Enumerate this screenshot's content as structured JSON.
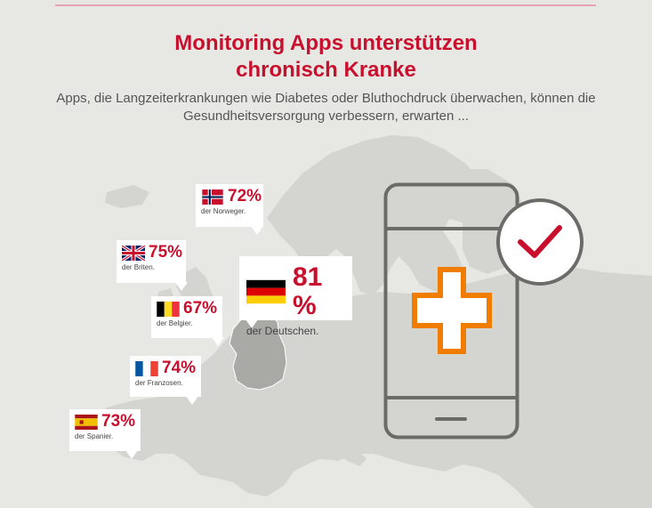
{
  "header": {
    "title_line1": "Monitoring Apps unterstützen",
    "title_line2": "chronisch Kranke",
    "subtitle": "Apps, die Langzeiterkrankungen wie Diabetes oder Bluthochdruck überwachen, können die Gesundheitsversorgung verbessern, erwarten ..."
  },
  "callouts": [
    {
      "country": "norway",
      "flag_icon": "norway-flag-icon",
      "percent": "72%",
      "caption": "der Norweger."
    },
    {
      "country": "uk",
      "flag_icon": "uk-flag-icon",
      "percent": "75%",
      "caption": "der Briten."
    },
    {
      "country": "germany",
      "flag_icon": "germany-flag-icon",
      "percent": "81 %",
      "caption": "der Deutschen."
    },
    {
      "country": "belgium",
      "flag_icon": "belgium-flag-icon",
      "percent": "67%",
      "caption": "der Belgier."
    },
    {
      "country": "france",
      "flag_icon": "france-flag-icon",
      "percent": "74%",
      "caption": "der Franzosen."
    },
    {
      "country": "spain",
      "flag_icon": "spain-flag-icon",
      "percent": "73%",
      "caption": "der Spanier."
    }
  ],
  "icons": {
    "phone": "smartphone-icon",
    "cross": "medical-cross-icon",
    "check": "checkmark-icon"
  },
  "colors": {
    "accent": "#c8102e",
    "orange": "#f07c00",
    "outline": "#6b6b68",
    "map_land": "#d4d5d0",
    "germany": "#a9aaa6",
    "background": "#e7e7e3"
  }
}
